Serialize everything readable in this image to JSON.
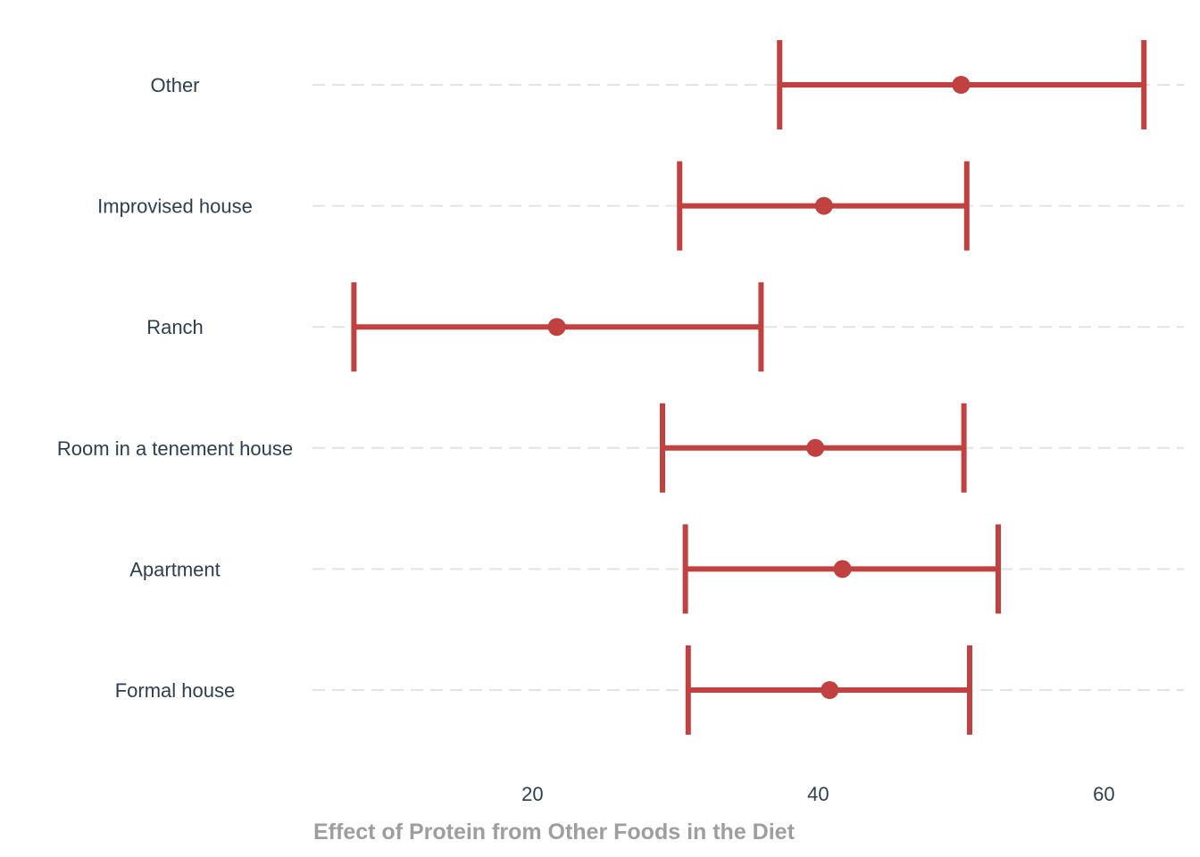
{
  "chart_data": {
    "type": "errorbar",
    "xlabel": "Effect of Protein from Other Foods in the Diet",
    "ylabel": "",
    "xlim": [
      4.6,
      65.6
    ],
    "xticks": [
      20,
      40,
      60
    ],
    "grid": "horizontal dashed",
    "legend": "none",
    "color": "#c0413f",
    "categories": [
      "Other",
      "Improvised house",
      "Ranch",
      "Room in a tenement house",
      "Apartment",
      "Formal house"
    ],
    "estimates": [
      50.0,
      40.4,
      21.7,
      39.8,
      41.7,
      40.8
    ],
    "lower": [
      37.3,
      30.3,
      7.5,
      29.1,
      30.7,
      30.9
    ],
    "upper": [
      62.8,
      50.4,
      36.0,
      50.2,
      52.6,
      50.6
    ]
  }
}
